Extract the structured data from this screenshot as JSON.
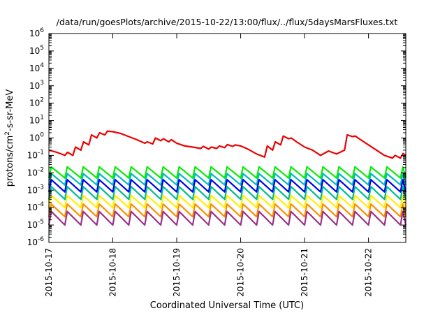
{
  "chart_data": {
    "type": "line",
    "title": "/data/run/goesPlots/archive/2015-10-22/13:00/flux/../flux/5daysMarsFluxes.txt",
    "xlabel": "Coordinated Universal Time (UTC)",
    "ylabel": "protons/cm²-s-sr-MeV",
    "yscale": "log",
    "ylim": [
      1e-06,
      1000000.0
    ],
    "xlim": [
      "2015-10-17T00:00",
      "2015-10-22T14:00"
    ],
    "xticks": [
      "2015-10-17",
      "2015-10-18",
      "2015-10-19",
      "2015-10-20",
      "2015-10-21",
      "2015-10-22"
    ],
    "yticks": [
      {
        "base": "10",
        "exp": "-6"
      },
      {
        "base": "10",
        "exp": "-5"
      },
      {
        "base": "10",
        "exp": "-4"
      },
      {
        "base": "10",
        "exp": "-3"
      },
      {
        "base": "10",
        "exp": "-2"
      },
      {
        "base": "10",
        "exp": "-1"
      },
      {
        "base": "10",
        "exp": "0"
      },
      {
        "base": "10",
        "exp": "1"
      },
      {
        "base": "10",
        "exp": "2"
      },
      {
        "base": "10",
        "exp": "3"
      },
      {
        "base": "10",
        "exp": "4"
      },
      {
        "base": "10",
        "exp": "5"
      },
      {
        "base": "10",
        "exp": "6"
      }
    ],
    "grid": false,
    "legend": "none",
    "series": [
      {
        "color": "#ee0000",
        "x": [
          "2015-10-17T00:00",
          "2015-10-17T03:00",
          "2015-10-17T06:00",
          "2015-10-17T07:00",
          "2015-10-17T09:00",
          "2015-10-17T10:00",
          "2015-10-17T12:00",
          "2015-10-17T13:00",
          "2015-10-17T15:00",
          "2015-10-17T16:00",
          "2015-10-17T18:00",
          "2015-10-17T19:00",
          "2015-10-17T21:00",
          "2015-10-17T22:00",
          "2015-10-18T00:00",
          "2015-10-18T03:00",
          "2015-10-18T06:00",
          "2015-10-18T09:00",
          "2015-10-18T12:00",
          "2015-10-18T13:00",
          "2015-10-18T15:00",
          "2015-10-18T16:00",
          "2015-10-18T18:00",
          "2015-10-18T19:00",
          "2015-10-18T21:00",
          "2015-10-18T22:00",
          "2015-10-19T00:00",
          "2015-10-19T03:00",
          "2015-10-19T06:00",
          "2015-10-19T09:00",
          "2015-10-19T10:00",
          "2015-10-19T12:00",
          "2015-10-19T13:00",
          "2015-10-19T15:00",
          "2015-10-19T16:00",
          "2015-10-19T18:00",
          "2015-10-19T19:00",
          "2015-10-19T21:00",
          "2015-10-19T22:00",
          "2015-10-20T00:00",
          "2015-10-20T03:00",
          "2015-10-20T06:00",
          "2015-10-20T09:00",
          "2015-10-20T10:00",
          "2015-10-20T12:00",
          "2015-10-20T13:00",
          "2015-10-20T15:00",
          "2015-10-20T16:00",
          "2015-10-20T18:00",
          "2015-10-20T19:00",
          "2015-10-20T21:00",
          "2015-10-21T00:00",
          "2015-10-21T03:00",
          "2015-10-21T06:00",
          "2015-10-21T09:00",
          "2015-10-21T12:00",
          "2015-10-21T15:00",
          "2015-10-21T16:00",
          "2015-10-21T18:00",
          "2015-10-21T19:00",
          "2015-10-21T21:00",
          "2015-10-22T00:00",
          "2015-10-22T03:00",
          "2015-10-22T06:00",
          "2015-10-22T09:00",
          "2015-10-22T10:00",
          "2015-10-22T12:00",
          "2015-10-22T13:00",
          "2015-10-22T14:00"
        ],
        "y": [
          0.2,
          0.15,
          0.1,
          0.15,
          0.1,
          0.3,
          0.2,
          0.6,
          0.4,
          1.5,
          1.0,
          2.0,
          1.5,
          2.5,
          2.3,
          1.8,
          1.2,
          0.8,
          0.5,
          0.6,
          0.45,
          1.0,
          0.7,
          0.9,
          0.6,
          0.8,
          0.5,
          0.35,
          0.3,
          0.25,
          0.33,
          0.23,
          0.3,
          0.25,
          0.35,
          0.28,
          0.42,
          0.33,
          0.4,
          0.35,
          0.22,
          0.12,
          0.08,
          0.35,
          0.2,
          0.6,
          0.4,
          1.3,
          0.9,
          1.0,
          0.6,
          0.3,
          0.2,
          0.1,
          0.18,
          0.12,
          0.2,
          1.5,
          1.2,
          1.3,
          0.8,
          0.4,
          0.2,
          0.1,
          0.07,
          0.1,
          0.07,
          0.13,
          0.1
        ]
      },
      {
        "color": "#00ee00",
        "x": [
          "2015-10-17T00:00",
          "2015-10-22T14:00"
        ],
        "y": [
          0.012,
          0.011
        ]
      },
      {
        "color": "#00bbbb",
        "x": [
          "2015-10-17T00:00",
          "2015-10-22T14:00"
        ],
        "y": [
          0.005,
          0.0045
        ]
      },
      {
        "color": "#0000ee",
        "x": [
          "2015-10-17T00:00",
          "2015-10-22T14:00"
        ],
        "y": [
          0.0022,
          0.002
        ]
      },
      {
        "color": "#00bb99",
        "x": [
          "2015-10-17T00:00",
          "2015-10-22T14:00"
        ],
        "y": [
          0.0008,
          0.0007
        ]
      },
      {
        "color": "#ffee00",
        "x": [
          "2015-10-17T00:00",
          "2015-10-22T14:00"
        ],
        "y": [
          0.00022,
          0.0002
        ]
      },
      {
        "color": "#ff8c00",
        "x": [
          "2015-10-17T00:00",
          "2015-10-22T14:00"
        ],
        "y": [
          8e-05,
          7e-05
        ]
      },
      {
        "color": "#993388",
        "x": [
          "2015-10-17T00:00",
          "2015-10-22T14:00"
        ],
        "y": [
          2.5e-05,
          2.2e-05
        ]
      }
    ],
    "oscillation": {
      "description_period_hours": 6,
      "peaks": [
        0.022,
        0.009,
        0.004,
        0.0016,
        0.0005,
        0.00016,
        6e-05
      ],
      "troughs": [
        0.005,
        0.002,
        0.0008,
        0.0003,
        0.0001,
        3e-05,
        1e-05
      ]
    }
  }
}
